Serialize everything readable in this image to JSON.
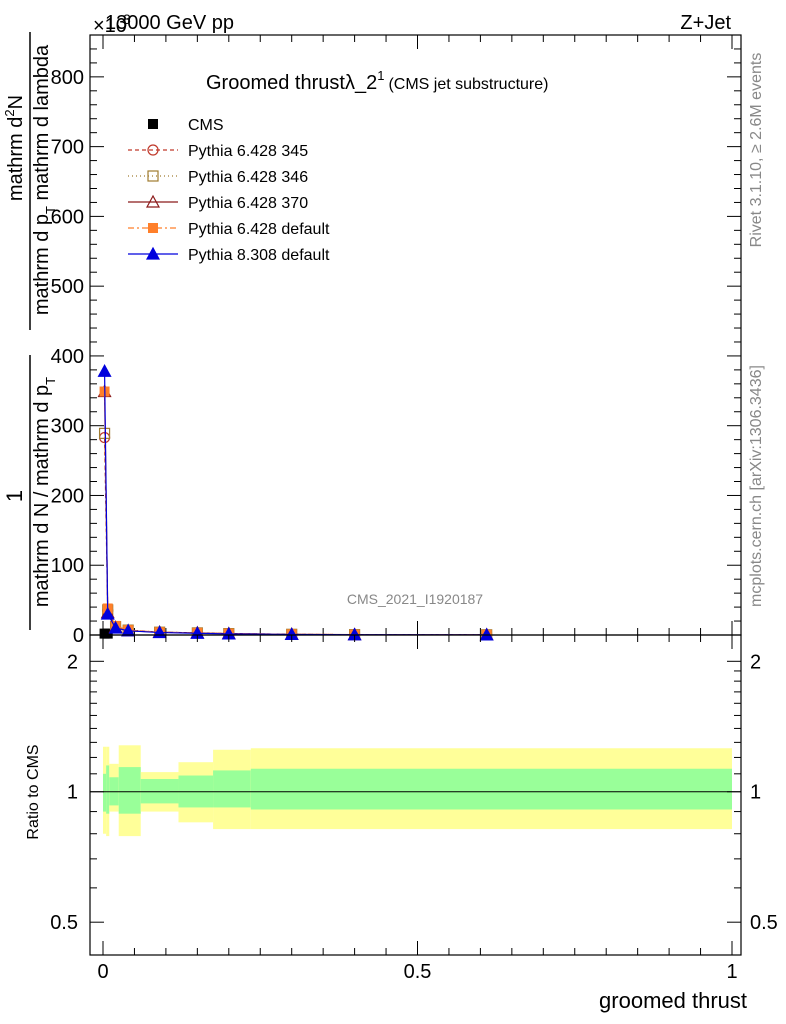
{
  "header": {
    "left": "13000 GeV pp",
    "right": "Z+Jet",
    "exponent_prefix": "×10",
    "exponent": "3"
  },
  "side_text": {
    "version": "Rivet 3.1.10, ≥ 2.6M events",
    "source": "mcplots.cern.ch [arXiv:1306.3436]"
  },
  "watermark": "CMS_2021_I1920187",
  "colors": {
    "cms": "#000000",
    "p345": "#c0392b",
    "p346": "#a07c30",
    "p370": "#8b1a1a",
    "pdef": "#ff7f2a",
    "p8": "#0000dd",
    "band_inner": "#99ff99",
    "band_outer": "#ffff99"
  },
  "chart_data": [
    {
      "type": "line",
      "title": "Groomed thrust",
      "title_symbol": "λ_2",
      "title_sup": "1",
      "title_note": "(CMS jet substructure)",
      "ylabel_numer": "mathrm d",
      "ylabel_numer_sup": "2",
      "ylabel_numer_tail": "N",
      "ylabel_denom": "mathrm d p",
      "ylabel_denom_sub": "T",
      "ylabel_denom_tail": " mathrm d lambda",
      "ylabel_prefix_numer": "1",
      "ylabel_prefix_denom": "mathrm d N / mathrm d p",
      "ylabel_prefix_denom_sub": "T",
      "xlim": [
        0,
        1
      ],
      "ylim": [
        0,
        860
      ],
      "y_scale": 1000,
      "yticks": [
        0,
        100,
        200,
        300,
        400,
        500,
        600,
        700,
        800
      ],
      "legend": "top-left",
      "series": [
        {
          "name": "CMS",
          "key": "cms",
          "marker": "square-filled",
          "dash": "none",
          "x": [
            0.0025,
            0.0075
          ],
          "y": [
            2,
            2
          ]
        },
        {
          "name": "Pythia 6.428 345",
          "key": "p345",
          "marker": "circle-open",
          "dash": "4,3",
          "x": [
            0.0025,
            0.0075,
            0.02,
            0.04,
            0.09,
            0.15,
            0.2,
            0.3,
            0.4,
            0.61
          ],
          "y": [
            283,
            35,
            12,
            7,
            4,
            3,
            2,
            1,
            0.5,
            0.3
          ]
        },
        {
          "name": "Pythia 6.428 346",
          "key": "p346",
          "marker": "square-open",
          "dash": "1,3",
          "x": [
            0.0025,
            0.0075,
            0.02,
            0.04,
            0.09,
            0.15,
            0.2,
            0.3,
            0.4,
            0.61
          ],
          "y": [
            289,
            36,
            12,
            7,
            4,
            3,
            2,
            1,
            0.5,
            0.3
          ]
        },
        {
          "name": "Pythia 6.428 370",
          "key": "p370",
          "marker": "triangle-open",
          "dash": "none",
          "x": [
            0.0025,
            0.0075,
            0.02,
            0.04,
            0.09,
            0.15,
            0.2,
            0.3,
            0.4,
            0.61
          ],
          "y": [
            349,
            32,
            11,
            6,
            4,
            3,
            2,
            1,
            0.5,
            0.3
          ]
        },
        {
          "name": "Pythia 6.428 default",
          "key": "pdef",
          "marker": "square-filled",
          "dash": "6,3,2,3",
          "x": [
            0.0025,
            0.0075,
            0.02,
            0.04,
            0.09,
            0.15,
            0.2,
            0.3,
            0.4,
            0.61
          ],
          "y": [
            349,
            38,
            13,
            7,
            4,
            3,
            2,
            1,
            0.5,
            0.3
          ]
        },
        {
          "name": "Pythia 8.308 default",
          "key": "p8",
          "marker": "triangle-filled",
          "dash": "none",
          "x": [
            0.0025,
            0.0075,
            0.02,
            0.04,
            0.09,
            0.15,
            0.2,
            0.3,
            0.4,
            0.61
          ],
          "y": [
            378,
            30,
            10,
            6,
            3.5,
            2.5,
            1.5,
            0.8,
            0.4,
            0.2
          ]
        }
      ]
    },
    {
      "type": "area",
      "title": "",
      "xlabel": "groomed thrust",
      "ylabel": "Ratio to CMS",
      "xlim": [
        0,
        1
      ],
      "ylim": [
        0.42,
        2.3
      ],
      "y_scale": "log",
      "yticks": [
        0.5,
        1,
        2
      ],
      "xticks": [
        0,
        0.5,
        1
      ],
      "bins": [
        {
          "x0": 0.0,
          "x1": 0.005,
          "stat_lo": 0.9,
          "stat_hi": 1.1,
          "tot_lo": 0.8,
          "tot_hi": 1.27
        },
        {
          "x0": 0.005,
          "x1": 0.01,
          "stat_lo": 0.89,
          "stat_hi": 1.15,
          "tot_lo": 0.79,
          "tot_hi": 1.27
        },
        {
          "x0": 0.01,
          "x1": 0.025,
          "stat_lo": 0.93,
          "stat_hi": 1.08,
          "tot_lo": 0.9,
          "tot_hi": 1.16
        },
        {
          "x0": 0.025,
          "x1": 0.06,
          "stat_lo": 0.89,
          "stat_hi": 1.14,
          "tot_lo": 0.79,
          "tot_hi": 1.28
        },
        {
          "x0": 0.06,
          "x1": 0.12,
          "stat_lo": 0.94,
          "stat_hi": 1.07,
          "tot_lo": 0.9,
          "tot_hi": 1.11
        },
        {
          "x0": 0.12,
          "x1": 0.175,
          "stat_lo": 0.92,
          "stat_hi": 1.09,
          "tot_lo": 0.85,
          "tot_hi": 1.17
        },
        {
          "x0": 0.175,
          "x1": 0.235,
          "stat_lo": 0.92,
          "stat_hi": 1.12,
          "tot_lo": 0.82,
          "tot_hi": 1.25
        },
        {
          "x0": 0.235,
          "x1": 1.0,
          "stat_lo": 0.91,
          "stat_hi": 1.13,
          "tot_lo": 0.82,
          "tot_hi": 1.26
        }
      ]
    }
  ]
}
